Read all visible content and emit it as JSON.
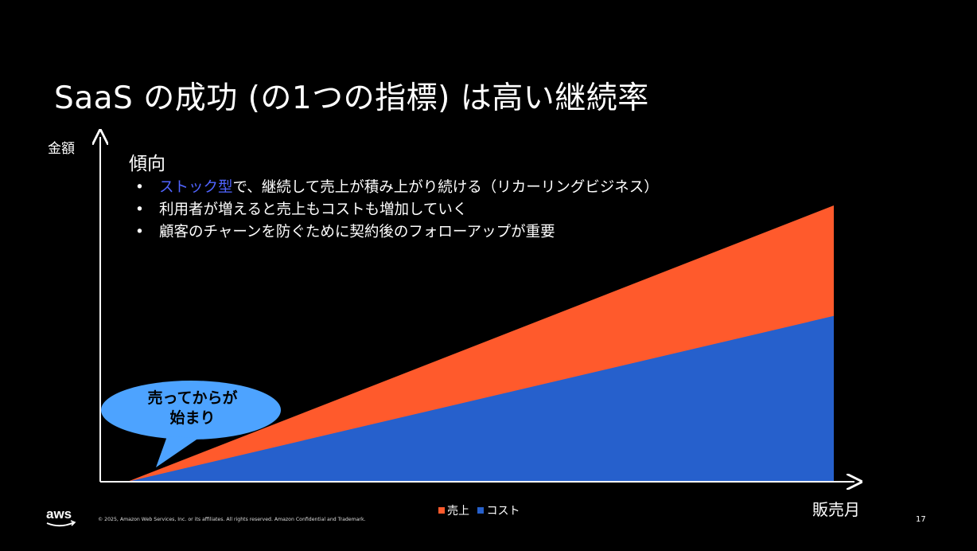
{
  "slide": {
    "title": "SaaS の成功 (の1つの指標) は高い継続率",
    "trend_heading": "傾向",
    "bullets": [
      {
        "highlight": "ストック型",
        "text": "で、継続して売上が積み上がり続ける（リカーリングビジネス）"
      },
      {
        "highlight": "",
        "text": "利用者が増えると売上もコストも増加していく"
      },
      {
        "highlight": "",
        "text": "顧客のチャーンを防ぐために契約後のフォローアップが重要"
      }
    ],
    "bullet_char": "•",
    "callout": [
      "売ってからが",
      "始まり"
    ],
    "copyright": "© 2025, Amazon Web Services, Inc. or its affiliates. All rights reserved. Amazon Confidential and Trademark.",
    "page_number": "17",
    "logo_text": "aws"
  },
  "chart_data": {
    "type": "area",
    "xlabel": "販売月",
    "ylabel": "金額",
    "x": [
      0,
      1
    ],
    "series": [
      {
        "name": "売上",
        "values": [
          0,
          1.0
        ],
        "color": "#ff5a2c"
      },
      {
        "name": "コスト",
        "values": [
          0,
          0.6
        ],
        "color": "#2660cc"
      }
    ],
    "ylim": [
      0,
      1.0
    ],
    "grid": false,
    "legend": "bottom-center"
  },
  "colors": {
    "background": "#000000",
    "text": "#ffffff",
    "highlight": "#5064ff",
    "bubble": "#4da3ff"
  }
}
